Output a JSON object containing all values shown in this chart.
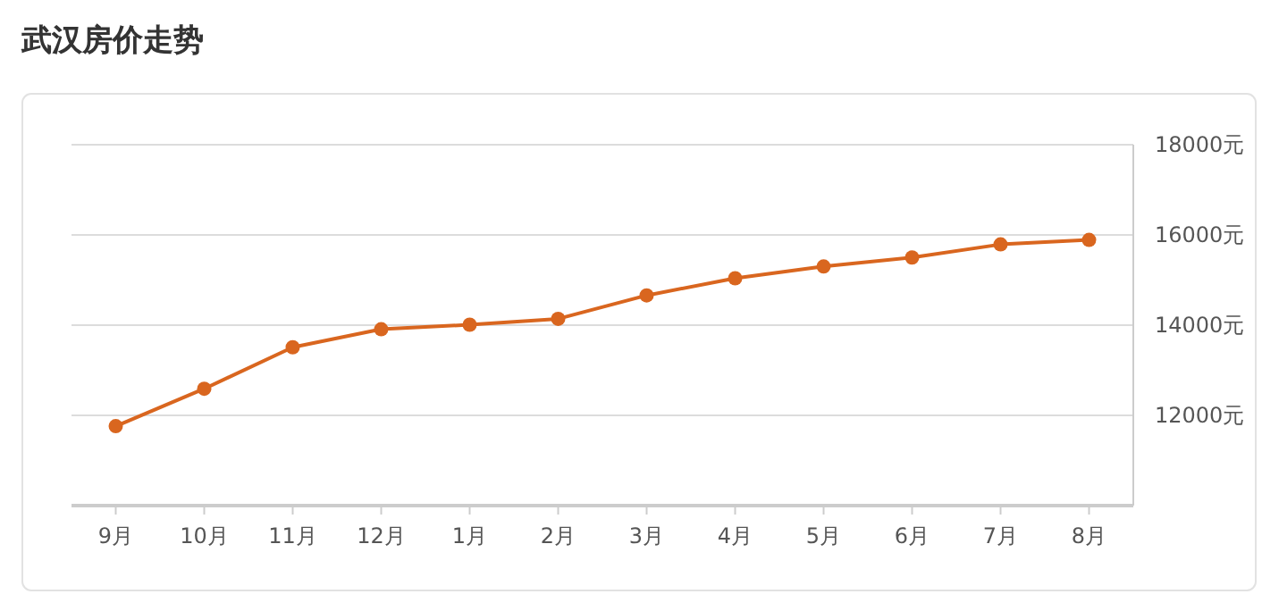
{
  "chart_data": {
    "type": "line",
    "title": "武汉房价走势",
    "categories": [
      "9月",
      "10月",
      "11月",
      "12月",
      "1月",
      "2月",
      "3月",
      "4月",
      "5月",
      "6月",
      "7月",
      "8月"
    ],
    "series": [
      {
        "color": "#d9661f",
        "values": [
          11760,
          12590,
          13510,
          13910,
          14010,
          14140,
          14660,
          15040,
          15300,
          15500,
          15790,
          15890
        ]
      }
    ],
    "ylim": [
      10000,
      18000
    ],
    "yticks": [
      {
        "value": 12000,
        "label": "12000元"
      },
      {
        "value": 14000,
        "label": "14000元"
      },
      {
        "value": 16000,
        "label": "16000元"
      },
      {
        "value": 18000,
        "label": "18000元"
      }
    ],
    "grid": "y",
    "marker": "circle",
    "line_style": "solid"
  }
}
